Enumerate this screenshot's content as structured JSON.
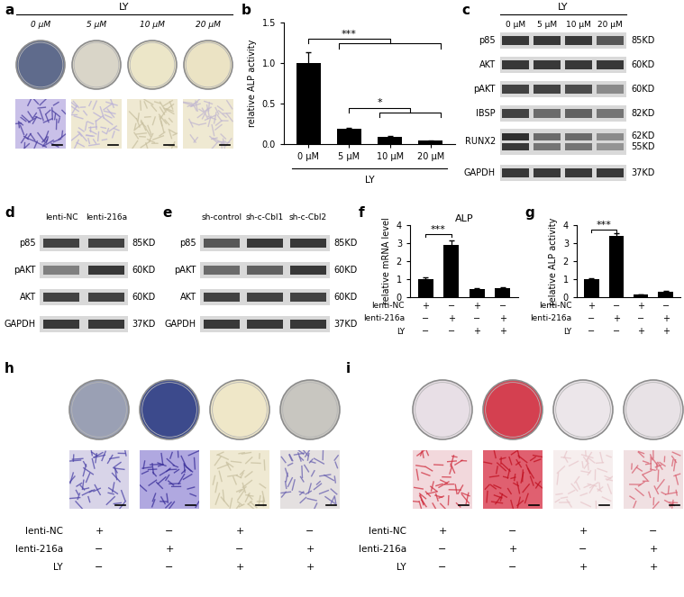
{
  "panel_labels": [
    "a",
    "b",
    "c",
    "d",
    "e",
    "f",
    "g",
    "h",
    "i"
  ],
  "chart_data": [
    {
      "type": "bar",
      "ylabel": "relative ALP activity",
      "categories": [
        "0 μM",
        "5 μM",
        "10 μM",
        "20 μM"
      ],
      "group_label": "LY",
      "values": [
        1.0,
        0.19,
        0.09,
        0.04
      ],
      "errors": [
        0.13,
        0.01,
        0.01,
        0.01
      ],
      "color": "#000000",
      "ylim": [
        0,
        1.5
      ],
      "yticks": [
        0.0,
        0.5,
        1.0,
        1.5
      ],
      "significance": [
        {
          "text": "***",
          "from": 0,
          "to": [
            1,
            3
          ],
          "y": 1.3
        },
        {
          "text": "*",
          "from": 1,
          "to": [
            2,
            3
          ],
          "y": 0.45
        }
      ]
    },
    {
      "type": "bar",
      "title": "ALP",
      "ylabel": "relative mRNA level",
      "categories": [
        null,
        null,
        null,
        null
      ],
      "values": [
        1.0,
        2.9,
        0.45,
        0.5
      ],
      "errors": [
        0.12,
        0.25,
        0.03,
        0.03
      ],
      "color": "#000000",
      "ylim": [
        0,
        4
      ],
      "yticks": [
        0,
        1,
        2,
        3,
        4
      ],
      "conditions": [
        {
          "name": "lenti-NC",
          "signs": [
            "+",
            "−",
            "+",
            "−"
          ]
        },
        {
          "name": "lenti-216a",
          "signs": [
            "−",
            "+",
            "−",
            "+"
          ]
        },
        {
          "name": "LY",
          "signs": [
            "−",
            "−",
            "+",
            "+"
          ]
        }
      ],
      "significance": [
        {
          "text": "***",
          "from": 0,
          "to": [
            1,
            1
          ],
          "y": 3.5
        }
      ]
    },
    {
      "type": "bar",
      "ylabel": "relative ALP activity",
      "categories": [
        null,
        null,
        null,
        null
      ],
      "values": [
        1.0,
        3.4,
        0.15,
        0.32
      ],
      "errors": [
        0.03,
        0.15,
        0.01,
        0.02
      ],
      "color": "#000000",
      "ylim": [
        0,
        4
      ],
      "yticks": [
        0,
        1,
        2,
        3,
        4
      ],
      "conditions": [
        {
          "name": "lenti-NC",
          "signs": [
            "+",
            "−",
            "+",
            "−"
          ]
        },
        {
          "name": "lenti-216a",
          "signs": [
            "−",
            "+",
            "−",
            "+"
          ]
        },
        {
          "name": "LY",
          "signs": [
            "−",
            "−",
            "+",
            "+"
          ]
        }
      ],
      "significance": [
        {
          "text": "***",
          "from": 0,
          "to": [
            1,
            1
          ],
          "y": 3.75
        }
      ]
    }
  ],
  "blots": [
    {
      "header": "LY",
      "lanes": [
        "0 μM",
        "5 μM",
        "10 μM",
        "20 μM"
      ],
      "rows": [
        {
          "name": "p85",
          "kd": [
            "85KD"
          ],
          "intensity": [
            [
              0.85,
              0.85,
              0.85,
              0.7
            ]
          ]
        },
        {
          "name": "AKT",
          "kd": [
            "60KD"
          ],
          "intensity": [
            [
              0.85,
              0.85,
              0.85,
              0.85
            ]
          ]
        },
        {
          "name": "pAKT",
          "kd": [
            "60KD"
          ],
          "intensity": [
            [
              0.8,
              0.8,
              0.75,
              0.45
            ]
          ]
        },
        {
          "name": "IBSP",
          "kd": [
            "82KD"
          ],
          "intensity": [
            [
              0.8,
              0.6,
              0.65,
              0.55
            ]
          ]
        },
        {
          "name": "RUNX2",
          "kd": [
            "62KD",
            "55KD"
          ],
          "intensity": [
            [
              0.9,
              0.6,
              0.6,
              0.45
            ],
            [
              0.85,
              0.55,
              0.55,
              0.4
            ]
          ]
        },
        {
          "name": "GAPDH",
          "kd": [
            "37KD"
          ],
          "intensity": [
            [
              0.85,
              0.85,
              0.85,
              0.85
            ]
          ]
        }
      ]
    },
    {
      "lanes": [
        "lenti-NC",
        "lenti-216a"
      ],
      "rows": [
        {
          "name": "p85",
          "kd": [
            "85KD"
          ],
          "intensity": [
            [
              0.8,
              0.8
            ]
          ]
        },
        {
          "name": "pAKT",
          "kd": [
            "60KD"
          ],
          "intensity": [
            [
              0.5,
              0.85
            ]
          ]
        },
        {
          "name": "AKT",
          "kd": [
            "60KD"
          ],
          "intensity": [
            [
              0.8,
              0.8
            ]
          ]
        },
        {
          "name": "GAPDH",
          "kd": [
            "37KD"
          ],
          "intensity": [
            [
              0.85,
              0.85
            ]
          ]
        }
      ]
    },
    {
      "lanes": [
        "sh-control",
        "sh-c-Cbl1",
        "sh-c-Cbl2"
      ],
      "rows": [
        {
          "name": "p85",
          "kd": [
            "85KD"
          ],
          "intensity": [
            [
              0.7,
              0.85,
              0.85
            ]
          ]
        },
        {
          "name": "pAKT",
          "kd": [
            "60KD"
          ],
          "intensity": [
            [
              0.6,
              0.65,
              0.85
            ]
          ]
        },
        {
          "name": "AKT",
          "kd": [
            "60KD"
          ],
          "intensity": [
            [
              0.8,
              0.8,
              0.8
            ]
          ]
        },
        {
          "name": "GAPDH",
          "kd": [
            "37KD"
          ],
          "intensity": [
            [
              0.85,
              0.85,
              0.85
            ]
          ]
        }
      ]
    }
  ],
  "plates": {
    "a": {
      "header": "LY",
      "samples": [
        "0 μM",
        "5 μM",
        "10 μM",
        "20 μM"
      ],
      "well_colors": [
        "#5f6b8c",
        "#d9d5c8",
        "#ece6c8",
        "#ebe3c4"
      ],
      "image_colors": [
        [
          "#c9c0e8",
          "#4b3fa0"
        ],
        [
          "#efe9d2",
          "#b9b0d8"
        ],
        [
          "#efe9d2",
          "#c8c0a0"
        ],
        [
          "#efe9d2",
          "#c2b8d0"
        ]
      ]
    },
    "h": {
      "conditions": [
        {
          "name": "lenti-NC",
          "signs": [
            "+",
            "−",
            "+",
            "−"
          ]
        },
        {
          "name": "lenti-216a",
          "signs": [
            "−",
            "+",
            "−",
            "+"
          ]
        },
        {
          "name": "LY",
          "signs": [
            "−",
            "−",
            "+",
            "+"
          ]
        }
      ],
      "well_colors": [
        "#9aa0b4",
        "#3c4a8c",
        "#efe7c8",
        "#c8c6c0"
      ],
      "image_colors": [
        [
          "#d8d4e8",
          "#4d45a8"
        ],
        [
          "#b0a8e0",
          "#3a2f9a"
        ],
        [
          "#efe9d2",
          "#c8c0a0"
        ],
        [
          "#e4e0e0",
          "#6a62b0"
        ]
      ]
    },
    "i": {
      "conditions": [
        {
          "name": "lenti-NC",
          "signs": [
            "+",
            "−",
            "+",
            "−"
          ]
        },
        {
          "name": "lenti-216a",
          "signs": [
            "−",
            "+",
            "−",
            "+"
          ]
        },
        {
          "name": "LY",
          "signs": [
            "−",
            "−",
            "+",
            "+"
          ]
        }
      ],
      "well_colors": [
        "#e8dfe6",
        "#d44050",
        "#ece6ea",
        "#e8e2e6"
      ],
      "image_colors": [
        [
          "#f2d8dc",
          "#d03040"
        ],
        [
          "#e06070",
          "#c01020"
        ],
        [
          "#f6eeee",
          "#e8c8cc"
        ],
        [
          "#f0e0e2",
          "#d86070"
        ]
      ]
    }
  }
}
